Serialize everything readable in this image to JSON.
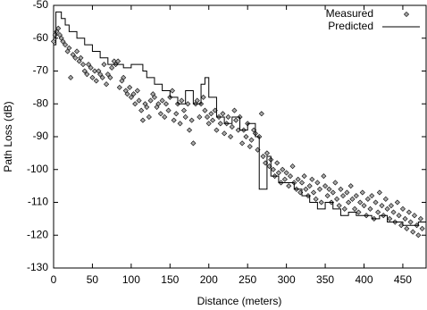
{
  "chart_data": {
    "type": "scatter",
    "xlabel": "Distance (meters)",
    "ylabel": "Path Loss (dB)",
    "xlim": [
      0,
      480
    ],
    "xticks": [
      0,
      50,
      100,
      150,
      200,
      250,
      300,
      350,
      400,
      450
    ],
    "ylim": [
      -130,
      -50
    ],
    "yticks": [
      -130,
      -120,
      -110,
      -100,
      -90,
      -80,
      -70,
      -60,
      -50
    ],
    "legend": "top-right",
    "series": [
      {
        "name": "Measured",
        "type": "scatter",
        "marker": "diamond",
        "color": "#a8a8a8",
        "x": [
          0,
          2,
          4,
          6,
          8,
          10,
          12,
          15,
          18,
          20,
          22,
          25,
          28,
          30,
          33,
          35,
          38,
          40,
          43,
          45,
          48,
          50,
          53,
          55,
          58,
          60,
          63,
          65,
          68,
          70,
          73,
          75,
          78,
          80,
          83,
          85,
          88,
          90,
          93,
          95,
          98,
          100,
          103,
          105,
          108,
          110,
          113,
          115,
          118,
          120,
          123,
          125,
          128,
          130,
          133,
          135,
          138,
          140,
          143,
          145,
          148,
          150,
          153,
          155,
          158,
          160,
          163,
          165,
          168,
          170,
          173,
          175,
          178,
          180,
          183,
          185,
          188,
          190,
          193,
          195,
          198,
          200,
          203,
          205,
          208,
          210,
          213,
          215,
          218,
          220,
          223,
          225,
          228,
          230,
          233,
          235,
          238,
          240,
          243,
          245,
          248,
          250,
          253,
          255,
          258,
          260,
          263,
          265,
          268,
          270,
          273,
          275,
          278,
          280,
          283,
          285,
          288,
          290,
          293,
          295,
          298,
          300,
          303,
          305,
          308,
          310,
          313,
          315,
          318,
          320,
          323,
          325,
          328,
          330,
          333,
          335,
          338,
          340,
          343,
          345,
          348,
          350,
          353,
          355,
          358,
          360,
          363,
          365,
          368,
          370,
          373,
          375,
          378,
          380,
          383,
          385,
          388,
          390,
          393,
          395,
          398,
          400,
          403,
          405,
          408,
          410,
          413,
          415,
          418,
          420,
          423,
          425,
          428,
          430,
          433,
          435,
          438,
          440,
          443,
          445,
          448,
          450,
          453,
          455,
          458,
          460,
          463,
          465,
          468,
          470,
          473,
          475
        ],
        "values": [
          -61,
          -59,
          -58,
          -57,
          -59,
          -60,
          -61,
          -62,
          -64,
          -63,
          -72,
          -65,
          -66,
          -64,
          -67,
          -66,
          -68,
          -70,
          -71,
          -68,
          -69,
          -72,
          -70,
          -73,
          -70,
          -71,
          -72,
          -68,
          -74,
          -71,
          -72,
          -69,
          -67,
          -68,
          -67,
          -75,
          -73,
          -72,
          -76,
          -77,
          -75,
          -78,
          -77,
          -80,
          -76,
          -79,
          -82,
          -85,
          -80,
          -81,
          -84,
          -79,
          -77,
          -78,
          -81,
          -80,
          -83,
          -79,
          -84,
          -80,
          -82,
          -78,
          -76,
          -85,
          -83,
          -80,
          -86,
          -79,
          -82,
          -84,
          -80,
          -88,
          -85,
          -92,
          -80,
          -79,
          -84,
          -80,
          -78,
          -82,
          -84,
          -86,
          -83,
          -85,
          -82,
          -88,
          -84,
          -86,
          -83,
          -89,
          -86,
          -84,
          -90,
          -87,
          -82,
          -85,
          -88,
          -84,
          -92,
          -88,
          -90,
          -86,
          -93,
          -91,
          -88,
          -89,
          -94,
          -90,
          -83,
          -96,
          -98,
          -95,
          -99,
          -97,
          -100,
          -102,
          -98,
          -101,
          -104,
          -100,
          -103,
          -101,
          -105,
          -102,
          -99,
          -104,
          -106,
          -103,
          -107,
          -104,
          -102,
          -106,
          -108,
          -105,
          -103,
          -107,
          -109,
          -104,
          -106,
          -110,
          -102,
          -105,
          -108,
          -106,
          -110,
          -107,
          -104,
          -109,
          -111,
          -106,
          -108,
          -112,
          -107,
          -110,
          -105,
          -109,
          -112,
          -108,
          -113,
          -110,
          -107,
          -111,
          -114,
          -109,
          -112,
          -108,
          -115,
          -110,
          -113,
          -107,
          -111,
          -114,
          -109,
          -112,
          -115,
          -111,
          -113,
          -116,
          -110,
          -114,
          -117,
          -112,
          -115,
          -118,
          -113,
          -116,
          -119,
          -114,
          -117,
          -120,
          -115,
          -118
        ]
      },
      {
        "name": "Predicted",
        "type": "step",
        "color": "#000000",
        "x": [
          0,
          3,
          10,
          15,
          20,
          30,
          40,
          50,
          60,
          70,
          80,
          90,
          100,
          115,
          120,
          130,
          140,
          150,
          160,
          170,
          180,
          190,
          195,
          200,
          210,
          220,
          230,
          240,
          250,
          260,
          265,
          275,
          280,
          290,
          300,
          310,
          320,
          330,
          340,
          350,
          360,
          370,
          380,
          390,
          400,
          410,
          420,
          430,
          440,
          450,
          460,
          470,
          480
        ],
        "values": [
          -62,
          -52,
          -54,
          -56,
          -58,
          -60,
          -62,
          -64,
          -66,
          -68,
          -68,
          -69,
          -68,
          -70,
          -72,
          -74,
          -76,
          -78,
          -80,
          -76,
          -80,
          -74,
          -72,
          -78,
          -84,
          -86,
          -84,
          -88,
          -86,
          -90,
          -106,
          -96,
          -102,
          -104,
          -104,
          -106,
          -108,
          -110,
          -112,
          -110,
          -112,
          -114,
          -113,
          -114,
          -114,
          -115,
          -114,
          -116,
          -116,
          -117,
          -117,
          -116,
          -117
        ]
      }
    ]
  }
}
